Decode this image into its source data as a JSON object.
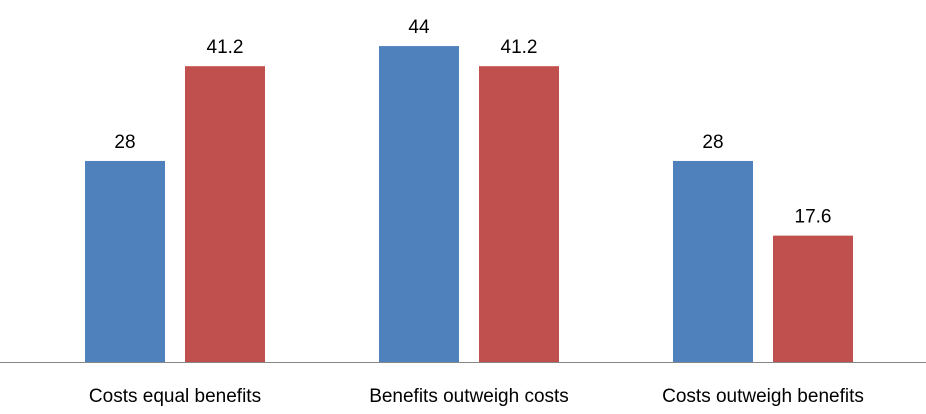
{
  "chart_data": {
    "type": "bar",
    "categories": [
      "Costs equal benefits",
      "Benefits outweigh costs",
      "Costs outweigh benefits"
    ],
    "series": [
      {
        "values": [
          28,
          44,
          28
        ],
        "color": "#4F81BD"
      },
      {
        "values": [
          41.2,
          41.2,
          17.6
        ],
        "color": "#C0504D"
      }
    ],
    "data_labels": [
      [
        "28",
        "44",
        "28"
      ],
      [
        "41.2",
        "41.2",
        "17.6"
      ]
    ],
    "ylim": [
      0,
      50
    ],
    "grid": false,
    "legend": "none",
    "title": "",
    "xlabel": "",
    "ylabel": ""
  }
}
